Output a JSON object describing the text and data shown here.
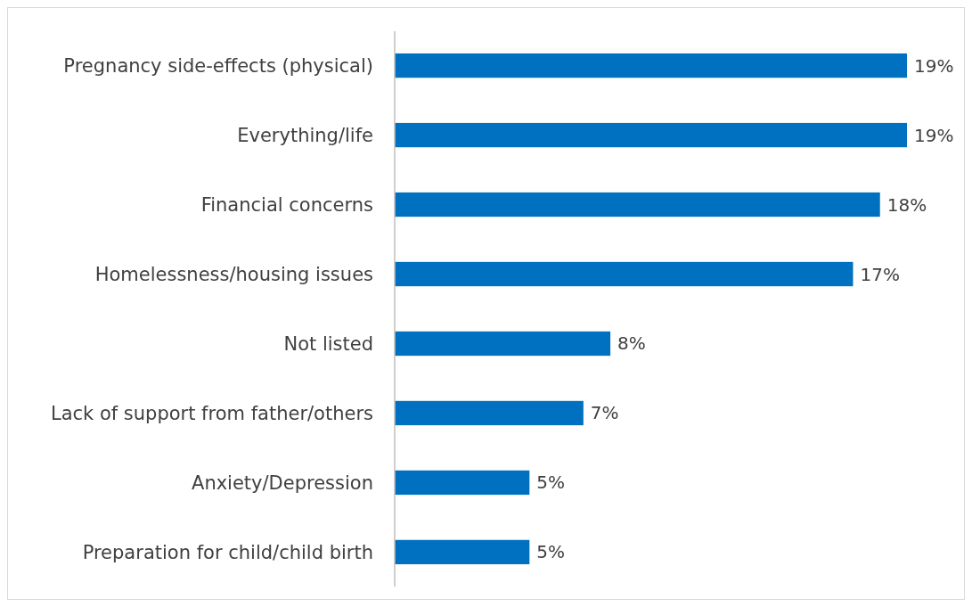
{
  "chart_data": {
    "type": "bar",
    "orientation": "horizontal",
    "categories": [
      "Pregnancy side-effects (physical)",
      "Everything/life",
      "Financial concerns",
      "Homelessness/housing issues",
      "Not listed",
      "Lack of support from father/others",
      "Anxiety/Depression",
      "Preparation for child/child birth"
    ],
    "values": [
      19,
      19,
      18,
      17,
      8,
      7,
      5,
      5
    ],
    "value_labels": [
      "19%",
      "19%",
      "18%",
      "17%",
      "8%",
      "7%",
      "5%",
      "5%"
    ],
    "color": "#0070c0"
  }
}
